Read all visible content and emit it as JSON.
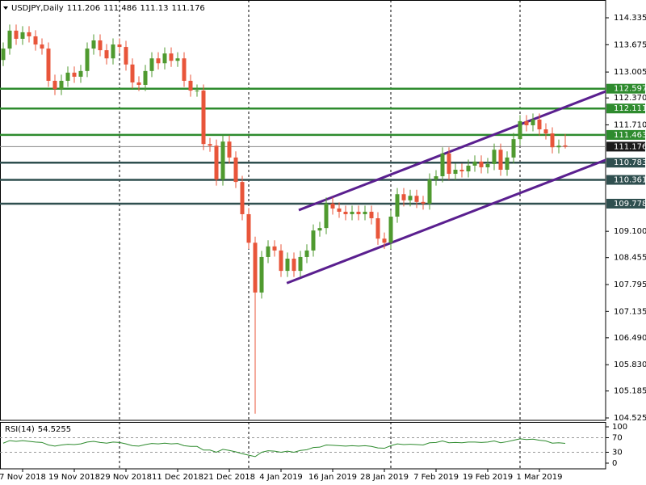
{
  "chart_data": {
    "type": "candlestick",
    "symbol": "USDJPY,Daily",
    "open": [
      113.3,
      113.58,
      114.02,
      113.82,
      113.98,
      113.88,
      113.68,
      113.58,
      112.79,
      112.59,
      112.79,
      112.99,
      112.89,
      113.03,
      113.58,
      113.78,
      113.54,
      113.34,
      113.68,
      113.62,
      113.19,
      112.75,
      112.69,
      113.03,
      113.34,
      113.22,
      113.46,
      113.28,
      113.34,
      112.79,
      112.55,
      112.55,
      111.24,
      111.2,
      110.37,
      111.3,
      110.91,
      110.31,
      109.52,
      108.82,
      107.6,
      108.47,
      108.73,
      108.63,
      108.13,
      108.43,
      108.13,
      108.47,
      108.63,
      109.12,
      109.18,
      109.78,
      109.66,
      109.58,
      109.52,
      109.58,
      109.52,
      109.58,
      109.42,
      108.92,
      108.82,
      109.46,
      110.01,
      109.86,
      109.97,
      109.82,
      109.78,
      110.37,
      110.45,
      111.01,
      110.51,
      110.61,
      110.57,
      110.71,
      110.81,
      110.67,
      110.75,
      111.1,
      110.61,
      110.91,
      111.36,
      111.8,
      111.7,
      111.84,
      111.6,
      111.5,
      111.16,
      111.206
    ],
    "high": [
      113.73,
      114.17,
      114.17,
      114.13,
      114.13,
      114.03,
      113.83,
      113.73,
      112.94,
      112.94,
      113.14,
      113.14,
      113.18,
      113.73,
      113.93,
      113.93,
      113.69,
      113.83,
      113.83,
      113.77,
      113.34,
      112.9,
      113.18,
      113.49,
      113.49,
      113.61,
      113.61,
      113.49,
      113.49,
      112.94,
      112.7,
      112.7,
      111.39,
      111.35,
      111.45,
      111.45,
      111.06,
      110.46,
      109.67,
      108.97,
      108.62,
      108.88,
      108.88,
      108.78,
      108.58,
      108.58,
      108.62,
      108.78,
      109.27,
      109.33,
      109.93,
      109.93,
      109.81,
      109.73,
      109.73,
      109.73,
      109.73,
      109.73,
      109.57,
      109.07,
      109.61,
      110.16,
      110.16,
      110.12,
      110.12,
      109.97,
      110.52,
      110.6,
      111.16,
      111.16,
      110.76,
      110.76,
      110.86,
      110.96,
      110.96,
      110.9,
      111.25,
      111.25,
      111.06,
      111.51,
      111.95,
      111.95,
      111.99,
      111.99,
      111.75,
      111.65,
      111.35,
      111.486
    ],
    "low": [
      113.15,
      113.43,
      113.67,
      113.67,
      113.73,
      113.53,
      113.43,
      112.64,
      112.44,
      112.44,
      112.64,
      112.74,
      112.74,
      112.88,
      113.43,
      113.39,
      113.19,
      113.19,
      113.47,
      113.04,
      112.6,
      112.54,
      112.54,
      112.88,
      113.07,
      113.07,
      113.13,
      113.13,
      112.64,
      112.4,
      112.4,
      111.09,
      111.05,
      110.22,
      110.22,
      110.76,
      110.16,
      109.37,
      108.67,
      104.63,
      107.45,
      108.32,
      108.48,
      107.98,
      107.98,
      107.98,
      107.98,
      108.32,
      108.48,
      108.97,
      109.03,
      109.51,
      109.43,
      109.37,
      109.37,
      109.37,
      109.37,
      109.27,
      108.77,
      108.67,
      108.67,
      109.31,
      109.71,
      109.71,
      109.67,
      109.63,
      109.63,
      110.22,
      110.3,
      110.36,
      110.36,
      110.42,
      110.42,
      110.56,
      110.52,
      110.52,
      110.6,
      110.46,
      110.46,
      110.76,
      111.21,
      111.55,
      111.55,
      111.45,
      111.35,
      111.01,
      111.01,
      111.13
    ],
    "close": [
      113.58,
      114.02,
      113.82,
      113.98,
      113.88,
      113.68,
      113.58,
      112.79,
      112.59,
      112.79,
      112.99,
      112.89,
      113.03,
      113.58,
      113.78,
      113.54,
      113.34,
      113.68,
      113.62,
      113.19,
      112.75,
      112.69,
      113.03,
      113.34,
      113.22,
      113.46,
      113.28,
      113.34,
      112.79,
      112.55,
      112.55,
      111.24,
      111.2,
      110.37,
      111.3,
      110.91,
      110.31,
      109.52,
      108.82,
      107.6,
      108.47,
      108.73,
      108.63,
      108.13,
      108.43,
      108.13,
      108.47,
      108.63,
      109.12,
      109.18,
      109.78,
      109.66,
      109.58,
      109.52,
      109.58,
      109.52,
      109.58,
      109.42,
      108.92,
      108.82,
      109.46,
      110.01,
      109.86,
      109.97,
      109.82,
      109.78,
      110.37,
      110.45,
      111.01,
      110.51,
      110.61,
      110.57,
      110.71,
      110.81,
      110.67,
      110.75,
      111.1,
      110.61,
      110.91,
      111.36,
      111.8,
      111.7,
      111.84,
      111.6,
      111.5,
      111.16,
      111.2,
      111.176
    ],
    "up_color": "#4f9a2f",
    "down_color": "#e8553a",
    "xlim": [
      -0.5,
      93.25
    ],
    "ylim": [
      104.466,
      114.771
    ],
    "yticks": [
      114.335,
      113.675,
      113.005,
      {
        "value": 112.37,
        "label": "112.370"
      },
      {
        "value": 111.71,
        "label": "111.710"
      },
      {
        "value": 109.1,
        "label": "109.100"
      },
      108.455,
      107.795,
      107.135,
      {
        "value": 106.49,
        "label": "106.490"
      },
      {
        "value": 105.83,
        "label": "105.830"
      },
      105.185,
      104.525
    ],
    "xticks": [
      {
        "value": 3,
        "label": "7 Nov 2018"
      },
      {
        "value": 11,
        "label": "19 Nov 2018"
      },
      {
        "value": 19,
        "label": "29 Nov 2018"
      },
      {
        "value": 27,
        "label": "11 Dec 2018"
      },
      {
        "value": 35,
        "label": "21 Dec 2018"
      },
      {
        "value": 43,
        "label": "4 Jan 2019"
      },
      {
        "value": 51,
        "label": "16 Jan 2019"
      },
      {
        "value": 59,
        "label": "28 Jan 2019"
      },
      {
        "value": 67,
        "label": "7 Feb 2019"
      },
      {
        "value": 75,
        "label": "19 Feb 2019"
      },
      {
        "value": 83,
        "label": "1 Mar 2019"
      }
    ],
    "separators": [
      18,
      38,
      60,
      80
    ],
    "levels": [
      {
        "value": 112.597,
        "color": "#2e8b2e"
      },
      {
        "value": 112.111,
        "color": "#2e8b2e"
      },
      {
        "value": 111.463,
        "color": "#2e8b2e"
      },
      {
        "value": 110.783,
        "color": "#2f4f4f"
      },
      {
        "value": 110.361,
        "color": "#2f4f4f"
      },
      {
        "value": 109.778,
        "color": "#2f4f4f"
      }
    ],
    "channels": [
      {
        "x": [
          45.75,
          93.25
        ],
        "y": [
          109.62,
          112.53
        ],
        "color": "#5a1f8f"
      },
      {
        "x": [
          43.9,
          93.25
        ],
        "y": [
          107.83,
          110.85
        ],
        "color": "#5a1f8f"
      }
    ],
    "rsi": {
      "name": "RSI(14)",
      "color": "#2e8b2e",
      "ylim": [
        -15.6,
        113.3
      ],
      "yticks": [
        100,
        70,
        30,
        0
      ],
      "levels": [
        70,
        30
      ],
      "values": [
        55,
        62,
        60,
        62,
        60,
        58,
        57,
        50,
        47,
        50,
        52,
        51,
        53,
        58,
        60,
        57,
        55,
        58,
        57,
        53,
        48,
        47,
        51,
        54,
        53,
        55,
        53,
        54,
        48,
        46,
        46,
        36,
        36,
        30,
        38,
        35,
        31,
        26,
        22,
        18,
        30,
        34,
        33,
        30,
        33,
        30,
        35,
        37,
        43,
        44,
        50,
        49,
        48,
        47,
        48,
        47,
        48,
        46,
        42,
        41,
        48,
        53,
        51,
        52,
        51,
        50,
        56,
        57,
        61,
        56,
        57,
        56,
        58,
        58,
        57,
        58,
        61,
        56,
        59,
        63,
        67,
        65,
        66,
        63,
        61,
        55,
        56,
        54.5255
      ]
    }
  }
}
